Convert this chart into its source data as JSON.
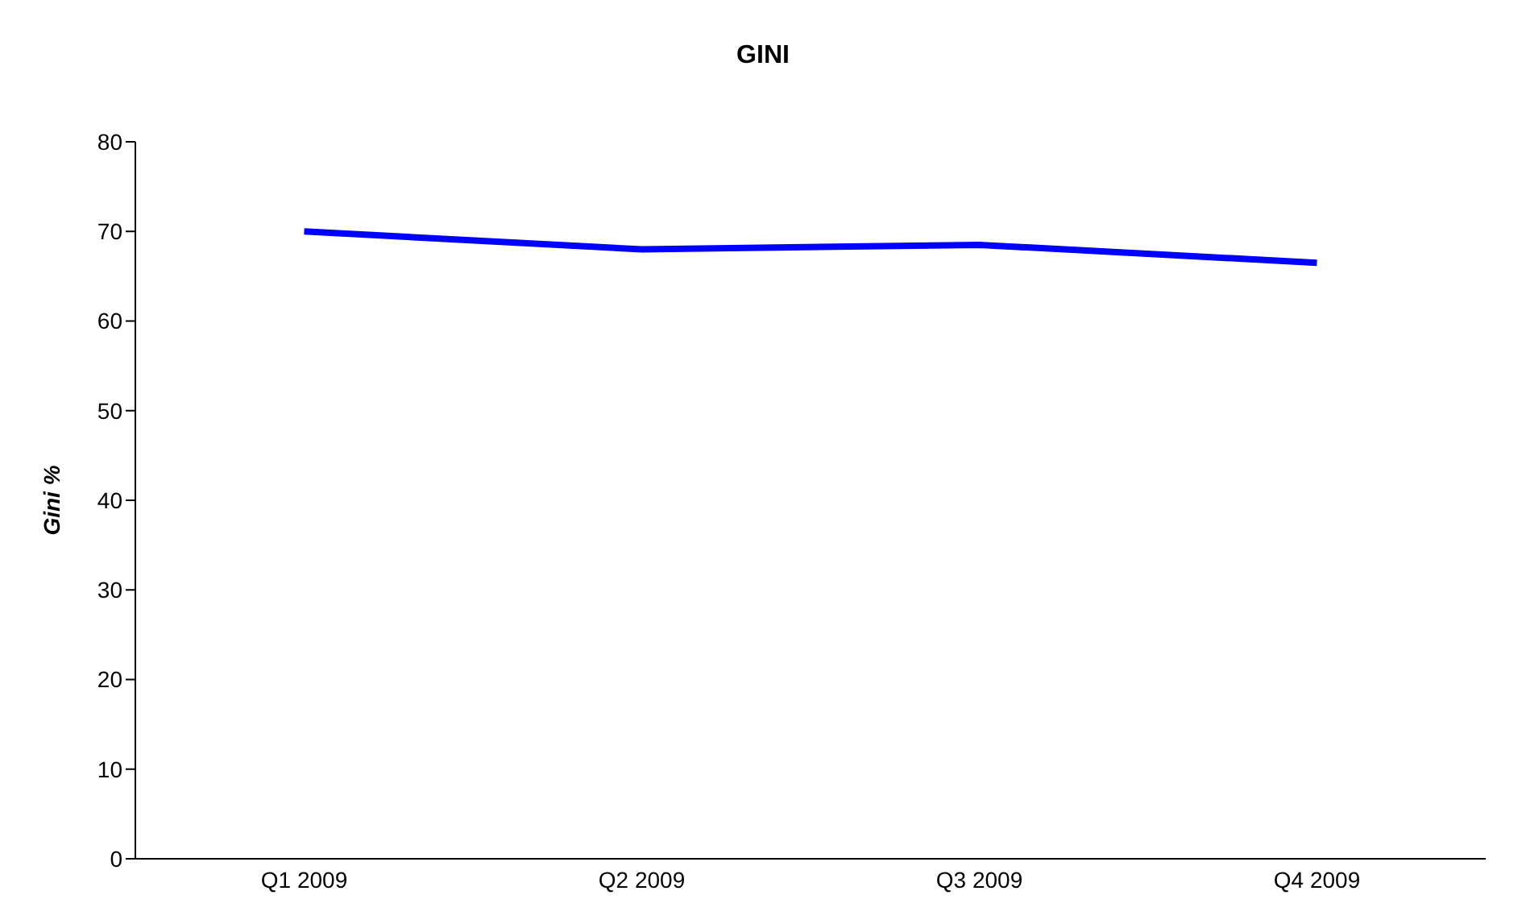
{
  "chart_data": {
    "type": "line",
    "title": "GINI",
    "ylabel": "Gini %",
    "categories": [
      "Q1 2009",
      "Q2 2009",
      "Q3 2009",
      "Q4 2009"
    ],
    "series": [
      {
        "color": "#0000ff",
        "values": [
          70,
          68,
          68.5,
          66.5
        ]
      }
    ],
    "ylim": [
      0,
      80
    ],
    "yticks": [
      0,
      10,
      20,
      30,
      40,
      50,
      60,
      70,
      80
    ],
    "legend": false,
    "marker": "none",
    "line_style": "solid"
  }
}
